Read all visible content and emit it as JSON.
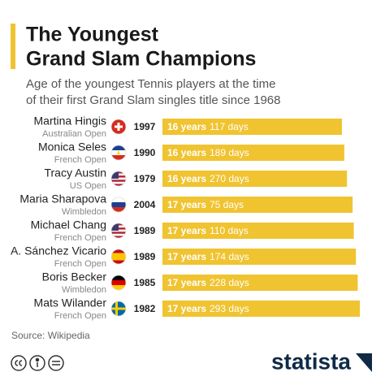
{
  "chart_data": {
    "type": "bar",
    "title": [
      "The Youngest",
      "Grand Slam Champions"
    ],
    "subtitle": [
      "Age of the youngest Tennis players at the time",
      "of their first Grand Slam singles title since 1968"
    ],
    "categories": [
      "Martina Hingis",
      "Monica Seles",
      "Tracy Austin",
      "Maria Sharapova",
      "Michael Chang",
      "A. Sánchez Vicario",
      "Boris Becker",
      "Mats Wilander"
    ],
    "tournaments": [
      "Australian Open",
      "French Open",
      "US Open",
      "Wimbledon",
      "French Open",
      "French Open",
      "Wimbledon",
      "French Open"
    ],
    "years_won": [
      1997,
      1990,
      1979,
      2004,
      1989,
      1989,
      1985,
      1982
    ],
    "age_years": [
      16,
      16,
      16,
      17,
      17,
      17,
      17,
      17
    ],
    "age_years_labels": [
      "16 years",
      "16 years",
      "16 years",
      "17 years",
      "17 years",
      "17 years",
      "17 years",
      "17 years"
    ],
    "age_days": [
      117,
      189,
      270,
      75,
      110,
      174,
      228,
      293
    ],
    "age_days_labels": [
      "117 days",
      "189 days",
      "270 days",
      "75 days",
      "110 days",
      "174 days",
      "228 days",
      "293 days"
    ],
    "color": "#f0c330",
    "xlim": [
      1.5,
      18
    ],
    "source": "Source: Wikipedia",
    "brand": "statista"
  }
}
